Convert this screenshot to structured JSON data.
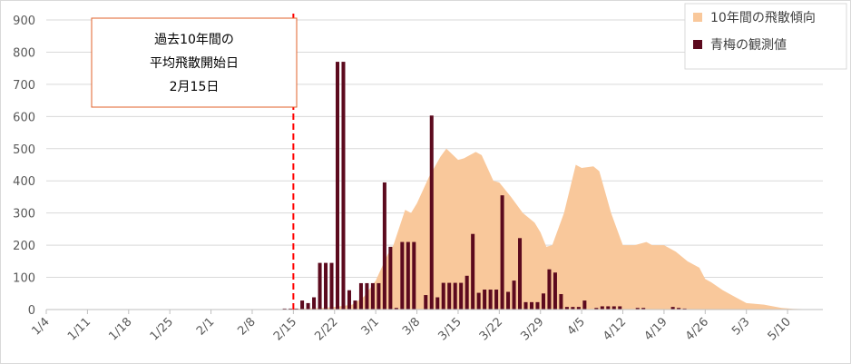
{
  "chart_data": {
    "type": "bar",
    "title": "",
    "xlabel": "",
    "ylabel": "",
    "ylim": [
      0,
      900
    ],
    "yticks": [
      0,
      100,
      200,
      300,
      400,
      500,
      600,
      700,
      800,
      900
    ],
    "grid": true,
    "legend_position": "top-right",
    "x_start": "1/4",
    "x_end": "5/16",
    "x_tick_labels": [
      "1/4",
      "1/11",
      "1/18",
      "1/25",
      "2/1",
      "2/8",
      "2/15",
      "2/22",
      "3/1",
      "3/8",
      "3/15",
      "3/22",
      "3/29",
      "4/5",
      "4/12",
      "4/19",
      "4/26",
      "5/3",
      "5/10"
    ],
    "series": [
      {
        "name": "10年間の飛散傾向",
        "type": "area",
        "color": "#f9c89b",
        "points": [
          [
            "1/4",
            0
          ],
          [
            "2/14",
            0
          ],
          [
            "2/15",
            2
          ],
          [
            "2/20",
            5
          ],
          [
            "2/22",
            8
          ],
          [
            "2/25",
            15
          ],
          [
            "2/27",
            40
          ],
          [
            "3/1",
            90
          ],
          [
            "3/3",
            170
          ],
          [
            "3/4",
            200
          ],
          [
            "3/6",
            310
          ],
          [
            "3/7",
            300
          ],
          [
            "3/8",
            330
          ],
          [
            "3/10",
            410
          ],
          [
            "3/12",
            475
          ],
          [
            "3/13",
            500
          ],
          [
            "3/15",
            465
          ],
          [
            "3/16",
            470
          ],
          [
            "3/18",
            490
          ],
          [
            "3/19",
            480
          ],
          [
            "3/21",
            400
          ],
          [
            "3/22",
            395
          ],
          [
            "3/24",
            350
          ],
          [
            "3/26",
            300
          ],
          [
            "3/28",
            270
          ],
          [
            "3/29",
            240
          ],
          [
            "3/30",
            195
          ],
          [
            "3/31",
            200
          ],
          [
            "4/2",
            300
          ],
          [
            "4/4",
            450
          ],
          [
            "4/5",
            440
          ],
          [
            "4/7",
            445
          ],
          [
            "4/8",
            430
          ],
          [
            "4/10",
            300
          ],
          [
            "4/12",
            200
          ],
          [
            "4/14",
            200
          ],
          [
            "4/16",
            210
          ],
          [
            "4/17",
            200
          ],
          [
            "4/19",
            200
          ],
          [
            "4/21",
            180
          ],
          [
            "4/23",
            150
          ],
          [
            "4/25",
            130
          ],
          [
            "4/26",
            95
          ],
          [
            "4/27",
            85
          ],
          [
            "4/29",
            60
          ],
          [
            "5/1",
            40
          ],
          [
            "5/3",
            20
          ],
          [
            "5/6",
            15
          ],
          [
            "5/9",
            5
          ],
          [
            "5/11",
            2
          ],
          [
            "5/16",
            0
          ]
        ]
      },
      {
        "name": "青梅の観測値",
        "type": "bar",
        "color": "#5c0a1e",
        "points": [
          [
            "2/13",
            3
          ],
          [
            "2/14",
            3
          ],
          [
            "2/15",
            3
          ],
          [
            "2/16",
            28
          ],
          [
            "2/17",
            20
          ],
          [
            "2/18",
            38
          ],
          [
            "2/19",
            145
          ],
          [
            "2/20",
            145
          ],
          [
            "2/21",
            145
          ],
          [
            "2/22",
            770
          ],
          [
            "2/23",
            770
          ],
          [
            "2/24",
            60
          ],
          [
            "2/25",
            28
          ],
          [
            "2/26",
            82
          ],
          [
            "2/27",
            82
          ],
          [
            "2/28",
            82
          ],
          [
            "3/1",
            82
          ],
          [
            "3/2",
            395
          ],
          [
            "3/3",
            195
          ],
          [
            "3/4",
            5
          ],
          [
            "3/5",
            210
          ],
          [
            "3/6",
            210
          ],
          [
            "3/7",
            210
          ],
          [
            "3/9",
            45
          ],
          [
            "3/10",
            603
          ],
          [
            "3/11",
            38
          ],
          [
            "3/12",
            83
          ],
          [
            "3/13",
            83
          ],
          [
            "3/14",
            83
          ],
          [
            "3/15",
            83
          ],
          [
            "3/16",
            105
          ],
          [
            "3/17",
            235
          ],
          [
            "3/18",
            52
          ],
          [
            "3/19",
            62
          ],
          [
            "3/20",
            62
          ],
          [
            "3/21",
            62
          ],
          [
            "3/22",
            355
          ],
          [
            "3/23",
            55
          ],
          [
            "3/24",
            90
          ],
          [
            "3/25",
            222
          ],
          [
            "3/26",
            23
          ],
          [
            "3/27",
            23
          ],
          [
            "3/28",
            23
          ],
          [
            "3/29",
            50
          ],
          [
            "3/30",
            125
          ],
          [
            "3/31",
            115
          ],
          [
            "4/1",
            48
          ],
          [
            "4/2",
            8
          ],
          [
            "4/3",
            8
          ],
          [
            "4/4",
            8
          ],
          [
            "4/5",
            28
          ],
          [
            "4/7",
            5
          ],
          [
            "4/8",
            10
          ],
          [
            "4/9",
            10
          ],
          [
            "4/10",
            10
          ],
          [
            "4/11",
            10
          ],
          [
            "4/14",
            5
          ],
          [
            "4/15",
            5
          ],
          [
            "4/20",
            8
          ],
          [
            "4/21",
            5
          ],
          [
            "4/22",
            3
          ]
        ]
      }
    ],
    "annotation": {
      "lines": [
        "過去10年間の",
        "平均飛散開始日",
        "2月15日"
      ],
      "marker_date": "2/15",
      "marker_color": "#ff0000",
      "box_border_color": "#e0602a"
    }
  }
}
